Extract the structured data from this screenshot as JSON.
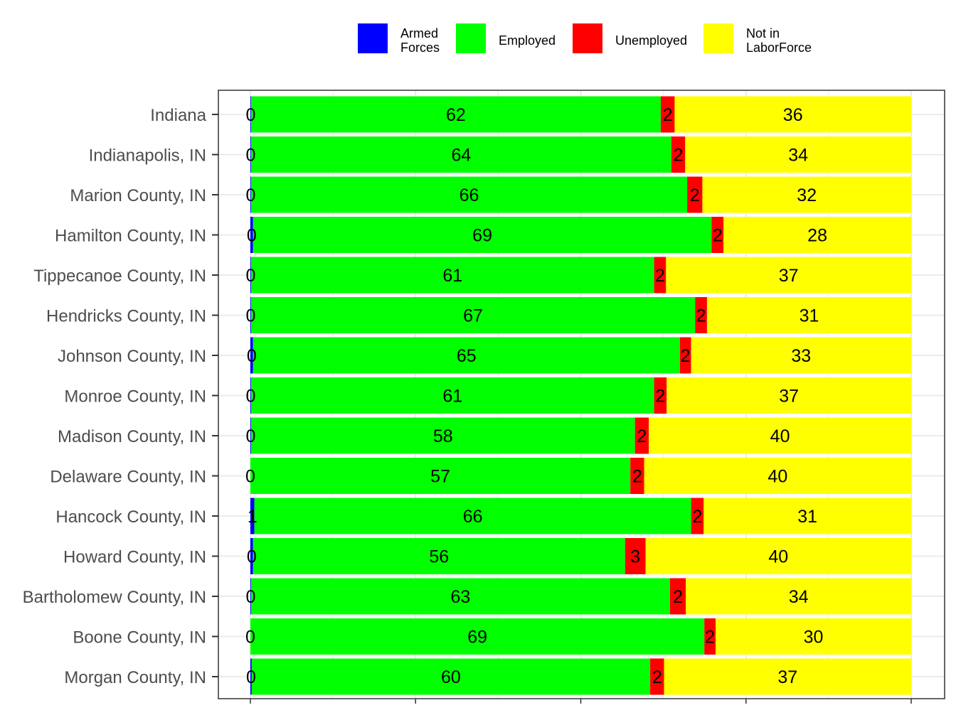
{
  "chart_data": {
    "type": "bar",
    "orientation": "horizontal",
    "stacked": true,
    "title": "",
    "xlabel": "",
    "ylabel": "",
    "xlim": [
      0,
      100
    ],
    "grid": true,
    "legend_position": "top",
    "categories": [
      "Indiana",
      "Indianapolis, IN",
      "Marion County, IN",
      "Hamilton County, IN",
      "Tippecanoe County, IN",
      "Hendricks County, IN",
      "Johnson County, IN",
      "Monroe County, IN",
      "Madison County, IN",
      "Delaware County, IN",
      "Hancock County, IN",
      "Howard County, IN",
      "Bartholomew County, IN",
      "Boone County, IN",
      "Morgan County, IN"
    ],
    "series": [
      {
        "name": "Armed Forces",
        "legend_lines": [
          "Armed",
          "Forces"
        ],
        "color": "#0000FF",
        "values": [
          0.1,
          0.1,
          0.1,
          0.4,
          0.1,
          0.1,
          0.4,
          0.1,
          0.1,
          0.0,
          0.6,
          0.4,
          0.1,
          0.0,
          0.2
        ],
        "labels": [
          "0",
          "0",
          "0",
          "0",
          "0",
          "0",
          "0",
          "0",
          "0",
          "0",
          "1",
          "0",
          "0",
          "0",
          "0"
        ]
      },
      {
        "name": "Employed",
        "legend_lines": [
          "Employed"
        ],
        "color": "#00FF00",
        "values": [
          62.0,
          63.6,
          66.0,
          69.4,
          61.0,
          67.2,
          64.6,
          61.0,
          58.1,
          57.5,
          66.1,
          56.3,
          63.4,
          68.7,
          60.3
        ],
        "labels": [
          "62",
          "64",
          "66",
          "69",
          "61",
          "67",
          "65",
          "61",
          "58",
          "57",
          "66",
          "56",
          "63",
          "69",
          "60"
        ]
      },
      {
        "name": "Unemployed",
        "legend_lines": [
          "Unemployed"
        ],
        "color": "#FF0000",
        "values": [
          2.1,
          2.1,
          2.3,
          1.8,
          1.8,
          1.8,
          1.7,
          1.9,
          2.1,
          2.1,
          1.9,
          3.1,
          2.4,
          1.7,
          2.1
        ],
        "labels": [
          "2",
          "2",
          "2",
          "2",
          "2",
          "2",
          "2",
          "2",
          "2",
          "2",
          "2",
          "3",
          "2",
          "2",
          "2"
        ]
      },
      {
        "name": "Not in LaborForce",
        "legend_lines": [
          "Not in",
          "LaborForce"
        ],
        "color": "#FFFF00",
        "values": [
          35.8,
          34.2,
          31.6,
          28.4,
          37.1,
          30.9,
          33.3,
          37.0,
          39.7,
          40.4,
          31.4,
          40.2,
          34.1,
          29.6,
          37.4
        ],
        "labels": [
          "36",
          "34",
          "32",
          "28",
          "37",
          "31",
          "33",
          "37",
          "40",
          "40",
          "31",
          "40",
          "34",
          "30",
          "37"
        ]
      }
    ]
  }
}
